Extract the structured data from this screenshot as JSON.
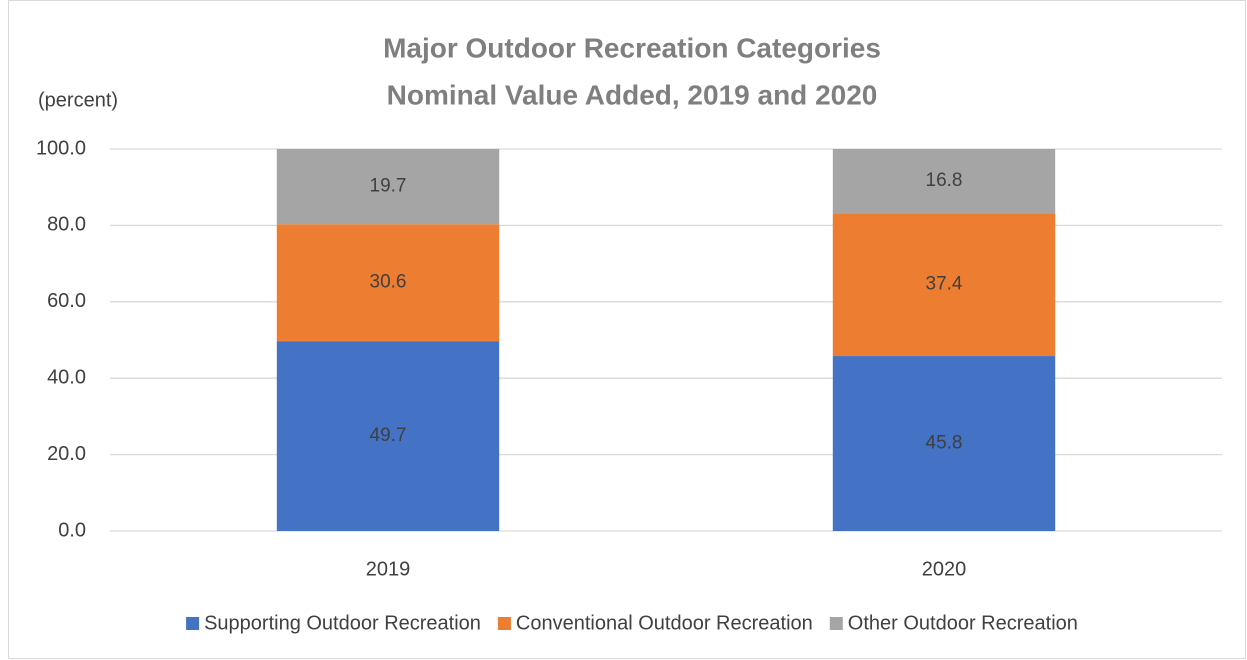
{
  "chart_data": {
    "type": "stacked_bar",
    "title": [
      "Major Outdoor Recreation Categories",
      "Nominal Value Added, 2019 and 2020"
    ],
    "y_label": "(percent)",
    "categories": [
      "2019",
      "2020"
    ],
    "series": [
      {
        "name": "Supporting Outdoor Recreation",
        "color": "#4472c4",
        "values": [
          49.7,
          45.8
        ]
      },
      {
        "name": "Conventional Outdoor Recreation",
        "color": "#ed7d31",
        "values": [
          30.6,
          37.4
        ]
      },
      {
        "name": "Other Outdoor Recreation",
        "color": "#a5a5a5",
        "values": [
          19.7,
          16.8
        ]
      }
    ],
    "ylim": [
      0,
      100
    ],
    "yticks": [
      {
        "value": 0,
        "label": "0.0"
      },
      {
        "value": 20,
        "label": "20.0"
      },
      {
        "value": 40,
        "label": "40.0"
      },
      {
        "value": 60,
        "label": "60.0"
      },
      {
        "value": 80,
        "label": "80.0"
      },
      {
        "value": 100,
        "label": "100.0"
      }
    ],
    "grid": true,
    "legend": "bottom"
  }
}
